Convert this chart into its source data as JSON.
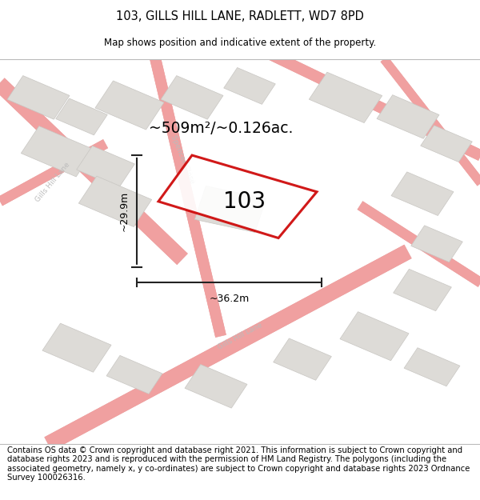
{
  "title": "103, GILLS HILL LANE, RADLETT, WD7 8PD",
  "subtitle": "Map shows position and indicative extent of the property.",
  "footer": "Contains OS data © Crown copyright and database right 2021. This information is subject to Crown copyright and database rights 2023 and is reproduced with the permission of HM Land Registry. The polygons (including the associated geometry, namely x, y co-ordinates) are subject to Crown copyright and database rights 2023 Ordnance Survey 100026316.",
  "area_label": "~509m²/~0.126ac.",
  "plot_number": "103",
  "dim_height": "~29.9m",
  "dim_width": "~36.2m",
  "bg_color": "#f2f0ed",
  "road_fill": "#e8e6e3",
  "road_edge": "#f0a0a0",
  "bld_fill": "#dddbd7",
  "bld_edge": "#c8c6c2",
  "plot_edge": "#cc0000",
  "plot_fill": "#ffffff",
  "dim_color": "#222222",
  "street_color": "#bbbbbb",
  "title_fontsize": 10.5,
  "subtitle_fontsize": 8.5,
  "footer_fontsize": 7.2
}
